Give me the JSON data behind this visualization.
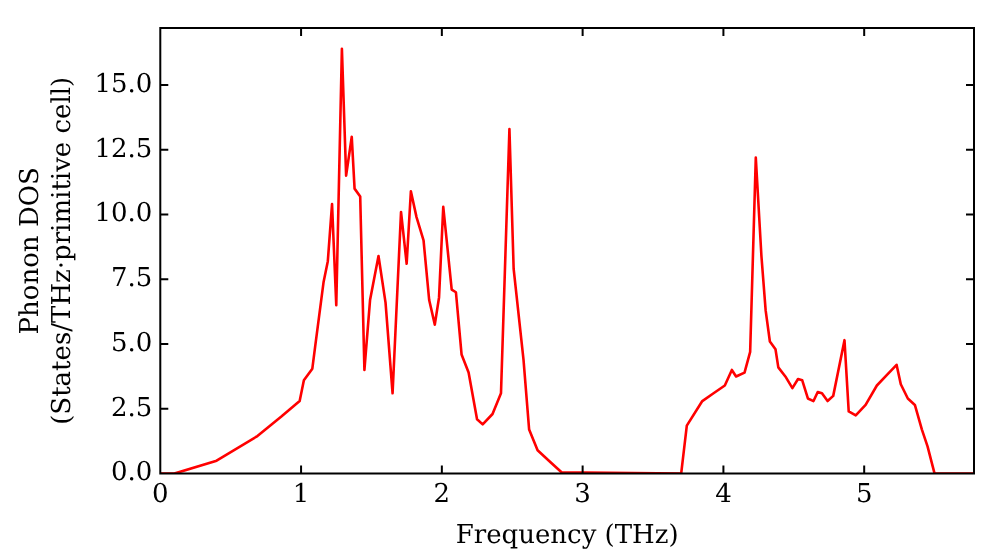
{
  "chart_data": {
    "type": "line",
    "xlabel": "Frequency (THz)",
    "ylabel": "Phonon DOS\n(States/THz·primitive cell)",
    "xlim": [
      0,
      5.78
    ],
    "ylim": [
      0,
      17.2
    ],
    "xticks": [
      0,
      1,
      2,
      3,
      4,
      5
    ],
    "yticks": [
      {
        "value": 0,
        "label": "0.0"
      },
      {
        "value": 2.5,
        "label": "2.5"
      },
      {
        "value": 5,
        "label": "5.0"
      },
      {
        "value": 7.5,
        "label": "7.5"
      },
      {
        "value": 10,
        "label": "10.0"
      },
      {
        "value": 12.5,
        "label": "12.5"
      },
      {
        "value": 15,
        "label": "15.0"
      }
    ],
    "grid": false,
    "legend": false,
    "marker": "none",
    "line_style": "solid",
    "series": [
      {
        "color": "#ff0000",
        "x": [
          0,
          0.1,
          0.4,
          0.69,
          0.86,
          0.99,
          1.02,
          1.08,
          1.1,
          1.16,
          1.19,
          1.22,
          1.25,
          1.29,
          1.32,
          1.36,
          1.38,
          1.42,
          1.45,
          1.49,
          1.55,
          1.6,
          1.65,
          1.71,
          1.75,
          1.78,
          1.82,
          1.87,
          1.91,
          1.95,
          1.98,
          2.01,
          2.07,
          2.1,
          2.14,
          2.19,
          2.25,
          2.29,
          2.36,
          2.42,
          2.48,
          2.51,
          2.58,
          2.62,
          2.68,
          2.77,
          2.85,
          3.7,
          3.74,
          3.85,
          3.93,
          4.01,
          4.06,
          4.09,
          4.15,
          4.19,
          4.23,
          4.27,
          4.3,
          4.33,
          4.37,
          4.39,
          4.44,
          4.49,
          4.53,
          4.56,
          4.6,
          4.64,
          4.67,
          4.7,
          4.74,
          4.78,
          4.86,
          4.89,
          4.94,
          5.01,
          5.09,
          5.16,
          5.23,
          5.26,
          5.31,
          5.36,
          5.41,
          5.45,
          5.5,
          5.78
        ],
        "values": [
          0,
          0,
          0.5,
          1.45,
          2.2,
          2.8,
          3.6,
          4.05,
          4.9,
          7.4,
          8.2,
          10.4,
          6.5,
          16.4,
          11.5,
          13,
          11,
          10.7,
          4,
          6.7,
          8.4,
          6.6,
          3.1,
          10.1,
          8.1,
          10.9,
          9.9,
          9,
          6.7,
          5.75,
          6.8,
          10.3,
          7.1,
          7,
          4.6,
          3.9,
          2.1,
          1.9,
          2.3,
          3.1,
          13.3,
          7.9,
          4.4,
          1.7,
          0.9,
          0.45,
          0.05,
          0,
          1.85,
          2.8,
          3.1,
          3.4,
          4,
          3.75,
          3.9,
          4.7,
          12.2,
          8.4,
          6.3,
          5.1,
          4.8,
          4.1,
          3.75,
          3.3,
          3.65,
          3.6,
          2.9,
          2.8,
          3.15,
          3.1,
          2.8,
          3,
          5.15,
          2.4,
          2.25,
          2.65,
          3.4,
          3.8,
          4.2,
          3.45,
          2.9,
          2.65,
          1.7,
          1.05,
          0,
          0
        ]
      }
    ]
  }
}
